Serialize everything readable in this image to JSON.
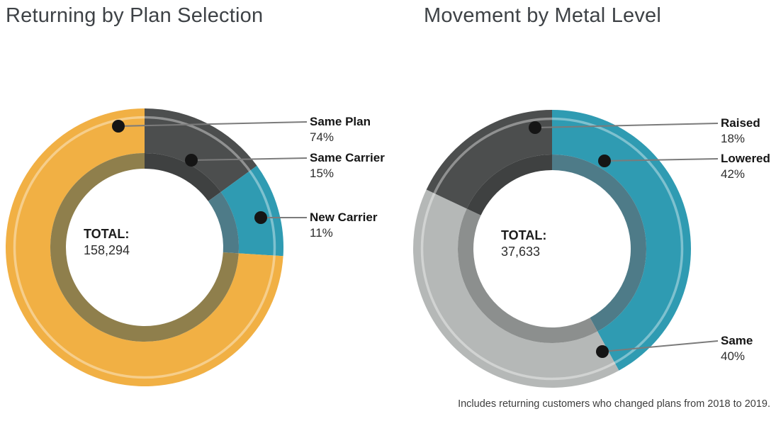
{
  "page": {
    "background": "#ffffff"
  },
  "chart_data": [
    {
      "type": "donut",
      "title": "Returning by Plan Selection",
      "center_label": "TOTAL:",
      "center_value": "158,294",
      "legend_position": "right",
      "slices": [
        {
          "label": "Same Plan",
          "value": 74,
          "pct_label": "74%",
          "color": "#F1B044",
          "inner_ring_color": "#8F7F4C"
        },
        {
          "label": "Same Carrier",
          "value": 15,
          "pct_label": "15%",
          "color": "#4C4E4E",
          "inner_ring_color": "#3F4141"
        },
        {
          "label": "New Carrier",
          "value": 11,
          "pct_label": "11%",
          "color": "#2F9BB2",
          "inner_ring_color": "#4E7B88"
        }
      ]
    },
    {
      "type": "donut",
      "title": "Movement by Metal Level",
      "center_label": "TOTAL:",
      "center_value": "37,633",
      "legend_position": "right",
      "slices": [
        {
          "label": "Raised",
          "value": 18,
          "pct_label": "18%",
          "color": "#4C4E4E",
          "inner_ring_color": "#3F4141"
        },
        {
          "label": "Lowered",
          "value": 42,
          "pct_label": "42%",
          "color": "#2F9BB2",
          "inner_ring_color": "#4E7B88"
        },
        {
          "label": "Same",
          "value": 40,
          "pct_label": "40%",
          "color": "#B5B8B7",
          "inner_ring_color": "#8C8F8E"
        }
      ]
    }
  ],
  "footnote": "Includes returning customers who changed plans from 2018 to 2019."
}
